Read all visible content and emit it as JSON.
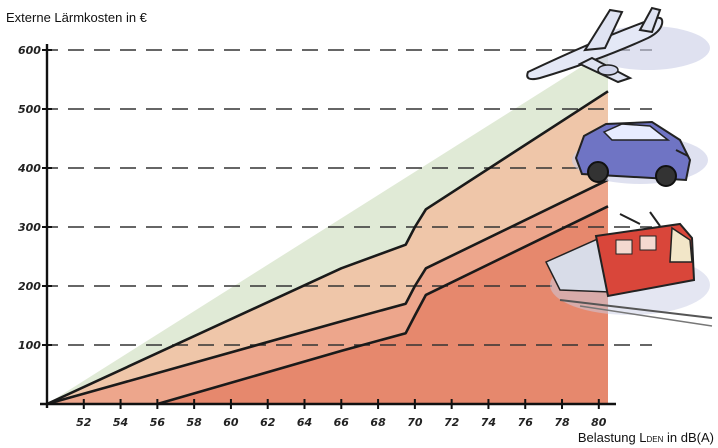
{
  "chart_data": {
    "type": "area",
    "title": "",
    "ylabel": "Externe Lärmkosten  in €",
    "xlabel": {
      "prefix": "Belastung L",
      "sub": "DEN",
      "suffix": " in dB(A)"
    },
    "xlim": [
      50,
      80.5
    ],
    "ylim": [
      0,
      600
    ],
    "xticks": [
      52,
      54,
      56,
      58,
      60,
      62,
      64,
      66,
      68,
      70,
      72,
      74,
      76,
      78,
      80
    ],
    "yticks": [
      100,
      200,
      300,
      400,
      500,
      600
    ],
    "grid": "dashed-horizontal",
    "series": [
      {
        "icon": "airplane-icon",
        "color": "#e0ead6",
        "x": [
          50,
          80.5
        ],
        "y": [
          0,
          600
        ]
      },
      {
        "icon": "car-icon",
        "color": "#efc6a9",
        "x": [
          50,
          66,
          69.5,
          70,
          70.6,
          80.5
        ],
        "y": [
          0,
          230,
          270,
          300,
          330,
          530
        ]
      },
      {
        "icon": "train-icon",
        "color": "#eda68c",
        "x": [
          50,
          66,
          69.5,
          70,
          70.6,
          80.5
        ],
        "y": [
          0,
          140,
          170,
          200,
          230,
          380
        ]
      },
      {
        "icon": "train-icon",
        "color": "#e6886d",
        "x": [
          56,
          66,
          69.5,
          70,
          70.6,
          80.5
        ],
        "y": [
          0,
          90,
          120,
          150,
          185,
          335
        ]
      }
    ]
  }
}
